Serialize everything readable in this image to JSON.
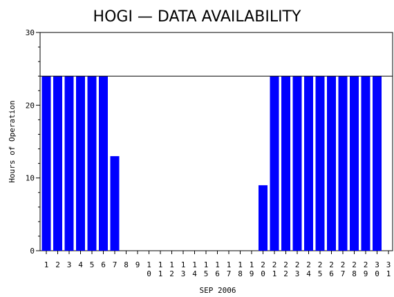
{
  "chart_data": {
    "type": "bar",
    "title": "HOGI — DATA AVAILABILITY",
    "xlabel": "SEP 2006",
    "ylabel": "Hours of Operation",
    "ylim": [
      0,
      30
    ],
    "yticks": [
      "0",
      "10",
      "20",
      "30"
    ],
    "categories": [
      "1",
      "2",
      "3",
      "4",
      "5",
      "6",
      "7",
      "8",
      "9",
      "10",
      "11",
      "12",
      "13",
      "14",
      "15",
      "16",
      "17",
      "18",
      "19",
      "20",
      "21",
      "22",
      "23",
      "24",
      "25",
      "26",
      "27",
      "28",
      "29",
      "30",
      "31"
    ],
    "values": [
      24,
      24,
      24,
      24,
      24,
      24,
      13,
      0,
      0,
      0,
      0,
      0,
      0,
      0,
      0,
      0,
      0,
      0,
      0,
      9,
      24,
      24,
      24,
      24,
      24,
      24,
      24,
      24,
      24,
      24,
      null
    ],
    "reference_line": 24,
    "bar_color": "#0000ff",
    "grid": false
  }
}
